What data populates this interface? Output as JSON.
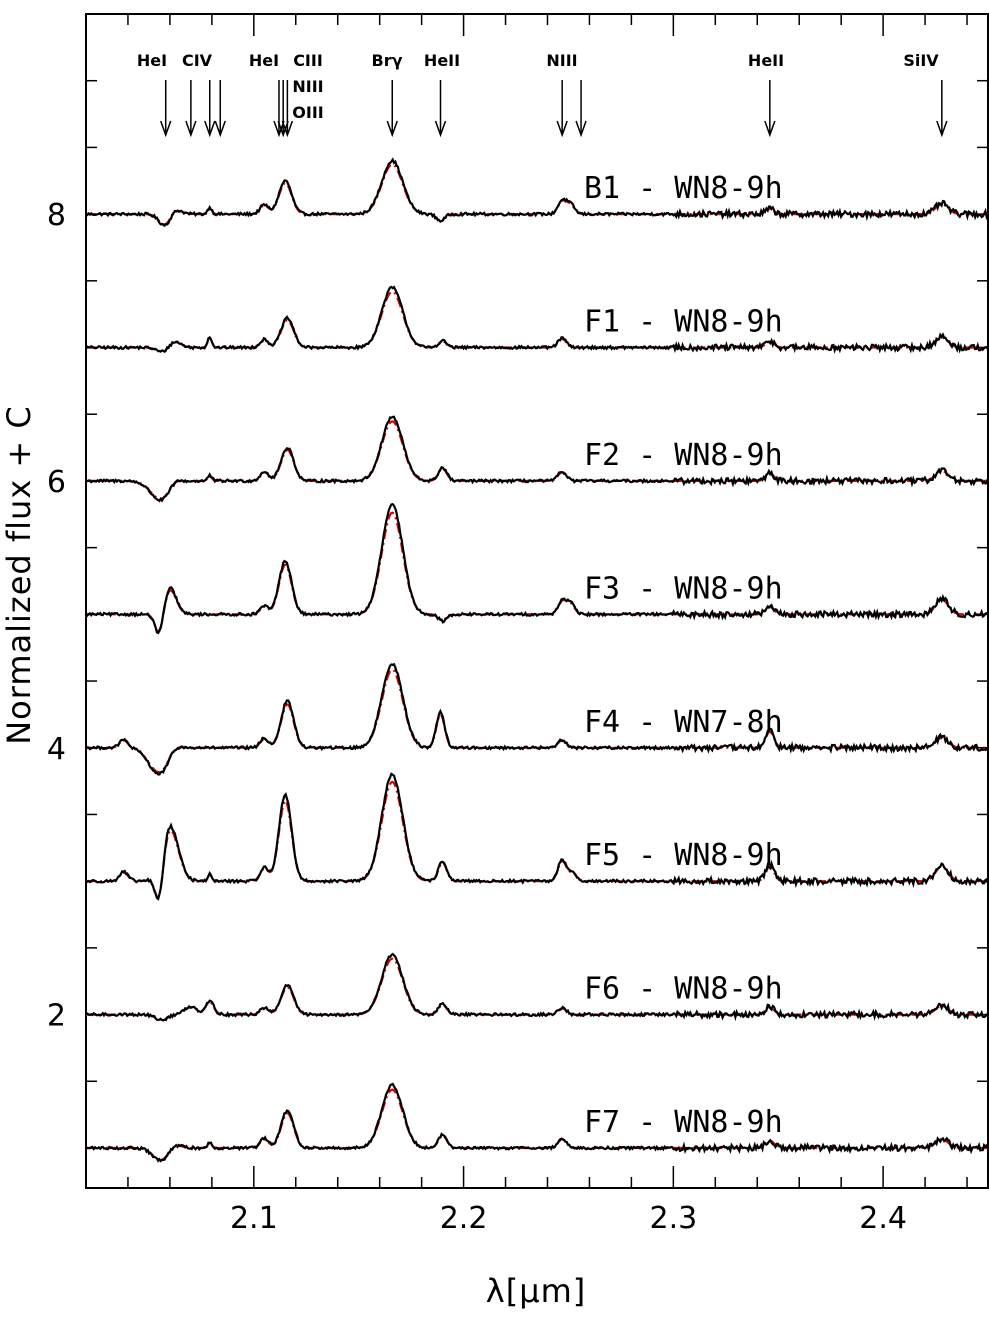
{
  "chart_data": {
    "type": "line",
    "xlabel": "λ[μm]",
    "ylabel": "Normalized flux + C",
    "xlim": [
      2.02,
      2.45
    ],
    "ylim": [
      0.7,
      9.5
    ],
    "xticks_major": [
      "2.1",
      "2.2",
      "2.3",
      "2.4"
    ],
    "yticks_major": [
      "2",
      "4",
      "6",
      "8"
    ],
    "legend": "none",
    "series_styles": {
      "observed": {
        "color": "#000000",
        "style": "solid"
      },
      "model": {
        "color": "#e00000",
        "style": "dash-dot"
      }
    },
    "line_ids": [
      {
        "label": "HeI",
        "arrows": [
          2.058
        ]
      },
      {
        "label": "CIV",
        "arrows": [
          2.07,
          2.079,
          2.084
        ]
      },
      {
        "label": "HeI",
        "arrows": [
          2.112,
          2.114
        ]
      },
      {
        "label": "CIII",
        "arrows": [
          2.116
        ]
      },
      {
        "label": "NIII",
        "arrows": []
      },
      {
        "label": "OIII",
        "arrows": []
      },
      {
        "label": "Brγ",
        "arrows": [
          2.166
        ]
      },
      {
        "label": "HeII",
        "arrows": [
          2.189
        ]
      },
      {
        "label": "NIII",
        "arrows": [
          2.247,
          2.256
        ]
      },
      {
        "label": "HeII",
        "arrows": [
          2.346
        ]
      },
      {
        "label": "SiIV",
        "arrows": [
          2.428
        ]
      }
    ],
    "spectra": [
      {
        "name": "B1 - WN8-9h",
        "offset": 8,
        "features": [
          [
            2.058,
            -0.1,
            0.003
          ],
          [
            2.062,
            0.05,
            0.003
          ],
          [
            2.079,
            0.05,
            0.001
          ],
          [
            2.105,
            0.07,
            0.002
          ],
          [
            2.115,
            0.25,
            0.003
          ],
          [
            2.166,
            0.4,
            0.005
          ],
          [
            2.189,
            -0.05,
            0.002
          ],
          [
            2.247,
            0.1,
            0.002
          ],
          [
            2.251,
            0.07,
            0.002
          ],
          [
            2.346,
            0.04,
            0.002
          ],
          [
            2.428,
            0.08,
            0.003
          ]
        ]
      },
      {
        "name": "F1 - WN8-9h",
        "offset": 7,
        "features": [
          [
            2.057,
            -0.04,
            0.003
          ],
          [
            2.062,
            0.05,
            0.003
          ],
          [
            2.079,
            0.08,
            0.001
          ],
          [
            2.105,
            0.06,
            0.002
          ],
          [
            2.116,
            0.22,
            0.003
          ],
          [
            2.166,
            0.45,
            0.005
          ],
          [
            2.19,
            0.05,
            0.002
          ],
          [
            2.247,
            0.07,
            0.002
          ],
          [
            2.346,
            0.05,
            0.002
          ],
          [
            2.428,
            0.08,
            0.003
          ]
        ]
      },
      {
        "name": "F2 - WN8-9h",
        "offset": 6,
        "features": [
          [
            2.056,
            -0.15,
            0.005
          ],
          [
            2.062,
            0.05,
            0.003
          ],
          [
            2.079,
            0.04,
            0.001
          ],
          [
            2.105,
            0.07,
            0.002
          ],
          [
            2.116,
            0.25,
            0.003
          ],
          [
            2.166,
            0.48,
            0.005
          ],
          [
            2.19,
            0.1,
            0.002
          ],
          [
            2.247,
            0.07,
            0.002
          ],
          [
            2.346,
            0.06,
            0.002
          ],
          [
            2.428,
            0.08,
            0.003
          ]
        ]
      },
      {
        "name": "F3 - WN8-9h",
        "offset": 5,
        "features": [
          [
            2.055,
            -0.18,
            0.002
          ],
          [
            2.06,
            0.2,
            0.003
          ],
          [
            2.105,
            0.06,
            0.002
          ],
          [
            2.115,
            0.4,
            0.003
          ],
          [
            2.166,
            0.82,
            0.005
          ],
          [
            2.19,
            -0.05,
            0.002
          ],
          [
            2.247,
            0.1,
            0.002
          ],
          [
            2.251,
            0.08,
            0.002
          ],
          [
            2.346,
            0.06,
            0.002
          ],
          [
            2.428,
            0.12,
            0.003
          ]
        ]
      },
      {
        "name": "F4 - WN7-8h",
        "offset": 4,
        "features": [
          [
            2.038,
            0.06,
            0.002
          ],
          [
            2.055,
            -0.2,
            0.005
          ],
          [
            2.062,
            0.05,
            0.003
          ],
          [
            2.105,
            0.07,
            0.002
          ],
          [
            2.116,
            0.35,
            0.003
          ],
          [
            2.166,
            0.63,
            0.005
          ],
          [
            2.189,
            0.27,
            0.002
          ],
          [
            2.247,
            0.06,
            0.002
          ],
          [
            2.346,
            0.13,
            0.002
          ],
          [
            2.428,
            0.08,
            0.003
          ]
        ]
      },
      {
        "name": "F5 - WN8-9h",
        "offset": 3,
        "features": [
          [
            2.038,
            0.07,
            0.002
          ],
          [
            2.055,
            -0.3,
            0.002
          ],
          [
            2.06,
            0.42,
            0.004
          ],
          [
            2.079,
            0.05,
            0.001
          ],
          [
            2.105,
            0.1,
            0.002
          ],
          [
            2.115,
            0.65,
            0.003
          ],
          [
            2.166,
            0.8,
            0.005
          ],
          [
            2.19,
            0.15,
            0.002
          ],
          [
            2.247,
            0.16,
            0.002
          ],
          [
            2.252,
            0.06,
            0.002
          ],
          [
            2.346,
            0.12,
            0.002
          ],
          [
            2.428,
            0.12,
            0.003
          ]
        ]
      },
      {
        "name": "F6 - WN8-9h",
        "offset": 2,
        "features": [
          [
            2.056,
            -0.04,
            0.003
          ],
          [
            2.07,
            0.06,
            0.003
          ],
          [
            2.079,
            0.1,
            0.002
          ],
          [
            2.105,
            0.05,
            0.002
          ],
          [
            2.116,
            0.22,
            0.003
          ],
          [
            2.166,
            0.45,
            0.005
          ],
          [
            2.19,
            0.08,
            0.002
          ],
          [
            2.247,
            0.05,
            0.002
          ],
          [
            2.346,
            0.06,
            0.002
          ],
          [
            2.428,
            0.07,
            0.003
          ]
        ]
      },
      {
        "name": "F7 - WN8-9h",
        "offset": 1,
        "features": [
          [
            2.056,
            -0.1,
            0.004
          ],
          [
            2.062,
            0.04,
            0.003
          ],
          [
            2.079,
            0.04,
            0.001
          ],
          [
            2.105,
            0.07,
            0.002
          ],
          [
            2.116,
            0.28,
            0.003
          ],
          [
            2.166,
            0.47,
            0.005
          ],
          [
            2.19,
            0.1,
            0.002
          ],
          [
            2.247,
            0.07,
            0.002
          ],
          [
            2.346,
            0.06,
            0.002
          ],
          [
            2.428,
            0.07,
            0.003
          ]
        ]
      }
    ]
  }
}
